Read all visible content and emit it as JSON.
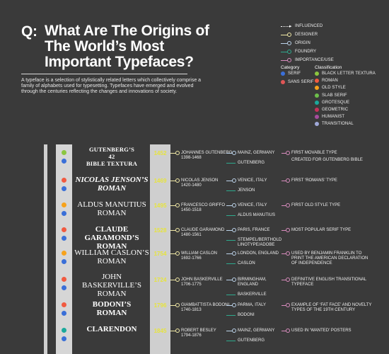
{
  "title": {
    "q": "Q:",
    "lines": [
      "What Are The Origins of",
      "The World’s Most",
      "Important Typefaces?"
    ]
  },
  "intro": "A typeface is a selection of stylistically related letters which collectively comprise a family of alphabets used for typesetting. Typefaces have emerged and evolved through the centuries reflecting the changes and innovations of society.",
  "legend": {
    "lines": [
      {
        "label": "INFLUENCED",
        "style": "dotted",
        "color": "#ffffff",
        "arrow": true
      },
      {
        "label": "DESIGNER",
        "style": "solid",
        "color": "#f1e9a6"
      },
      {
        "label": "ORIGIN",
        "style": "solid",
        "color": "#bcd3ea"
      },
      {
        "label": "FOUNDRY",
        "style": "solid",
        "color": "#2eaa8e"
      },
      {
        "label": "IMPORTANCE/USE",
        "style": "solid",
        "color": "#d98cbe"
      }
    ],
    "category_heading": "Category",
    "categories": [
      {
        "label": "SERIF",
        "color": "#3a6fd8"
      },
      {
        "label": "SANS SERIF",
        "color": "#e05656"
      }
    ],
    "classification_heading": "Classification",
    "classifications": [
      {
        "label": "BLACK LETTER TEXTURA",
        "color": "#8cc63f"
      },
      {
        "label": "ROMAN",
        "color": "#f15a40"
      },
      {
        "label": "OLD STYLE",
        "color": "#f7a21b"
      },
      {
        "label": "SLAB SERIF",
        "color": "#6dbf4b"
      },
      {
        "label": "GROTESQUE",
        "color": "#1ba99c"
      },
      {
        "label": "GEOMETRIC",
        "color": "#c7305b"
      },
      {
        "label": "HUMANIST",
        "color": "#a64d9e"
      },
      {
        "label": "TRANSITIONAL",
        "color": "#9fa8d8"
      }
    ]
  },
  "typefaces": [
    {
      "name_lines": [
        "GUTENBERG’S",
        "42",
        "BIBLE TEXTURA"
      ],
      "style": "gothic",
      "year": "1452",
      "designer": [
        "JOHANNES GUTENBERG",
        "1398-1468"
      ],
      "place": [
        "MAINZ, GERMANY"
      ],
      "foundry": [
        "GUTENBERG"
      ],
      "note": [
        "FIRST MOVABLE TYPE",
        "CREATED FOR GUTENBERG BIBLE"
      ],
      "classification_color": "#8cc63f",
      "category_color": "#3a6fd8"
    },
    {
      "name_lines": [
        "NICOLAS JENSON’S",
        "ROMAN"
      ],
      "style": "italic",
      "year": "1469",
      "designer": [
        "NICOLAS JENSON",
        "1420-1480"
      ],
      "place": [
        "VENICE, ITALY"
      ],
      "foundry": [
        "JENSON"
      ],
      "note": [
        "FIRST ‘ROMANS’ TYPE"
      ],
      "classification_color": "#f15a40",
      "category_color": "#3a6fd8"
    },
    {
      "name_lines": [
        "ALDUS MANUTIUS",
        "ROMAN"
      ],
      "style": "plain",
      "year": "1495",
      "designer": [
        "FRANCESCO GRIFFO",
        "1450-1518"
      ],
      "place": [
        "VENICE, ITALY"
      ],
      "foundry": [
        "ALDUS MANUTIUS"
      ],
      "note": [
        "FIRST OLD STYLE TYPE"
      ],
      "classification_color": "#f7a21b",
      "category_color": "#3a6fd8"
    },
    {
      "name_lines": [
        "CLAUDE GARAMOND’S",
        "ROMAN"
      ],
      "style": "bold",
      "year": "1528",
      "designer": [
        "CLAUDE GARAMOND",
        "1480-1561"
      ],
      "place": [
        "PARIS, FRANCE"
      ],
      "foundry": [
        "STEMPEL/BERTHOLD",
        "LINOTYPE/ADOBE"
      ],
      "note": [
        "MOST POPULAR SERIF TYPE"
      ],
      "classification_color": "#f15a40",
      "category_color": "#3a6fd8"
    },
    {
      "name_lines": [
        "WILLIAM CASLON’S",
        "ROMAN"
      ],
      "style": "plain",
      "year": "1754",
      "designer": [
        "WILLIAM CASLON",
        "1692-1766"
      ],
      "place": [
        "LONDON, ENGLAND"
      ],
      "foundry": [
        "CASLON"
      ],
      "note": [
        "USED BY BENJAMIN FRANKLIN TO",
        "PRINT THE AMERICAN DECLARATION",
        "OF INDEPENDENCE"
      ],
      "classification_color": "#f7a21b",
      "category_color": "#3a6fd8"
    },
    {
      "name_lines": [
        "JOHN",
        "BASKERVILLE’S",
        "ROMAN"
      ],
      "style": "plain",
      "year": "1724",
      "designer": [
        "JOHN BASKERVILLE",
        "1706-1775"
      ],
      "place": [
        "BIRMINGHAM,",
        "ENGLAND"
      ],
      "foundry": [
        "BASKERVILLE"
      ],
      "note": [
        "DEFINITIVE ENGLISH TRANSITIONAL",
        "TYPEFACE"
      ],
      "classification_color": "#f15a40",
      "category_color": "#3a6fd8"
    },
    {
      "name_lines": [
        "BODONI’S",
        "ROMAN"
      ],
      "style": "bold",
      "year": "1796",
      "designer": [
        "GIAMBATTISTA BODONI",
        "1740-1813"
      ],
      "place": [
        "PARMA, ITALY"
      ],
      "foundry": [
        "BODONI"
      ],
      "note": [
        "EXAMPLE OF ‘FAT FACE’ AND NOVELTY",
        "TYPES OF THE 19TH  CENTURY"
      ],
      "classification_color": "#f15a40",
      "category_color": "#3a6fd8"
    },
    {
      "name_lines": [
        "CLARENDON"
      ],
      "style": "bold",
      "year": "1845",
      "designer": [
        "ROBERT BESLEY",
        "1794-1876"
      ],
      "place": [
        "MAINZ, GERMANY"
      ],
      "foundry": [
        "GUTENBERG"
      ],
      "note": [
        "USED IN ‘WANTED’ POSTERS"
      ],
      "classification_color": "#1ba99c",
      "category_color": "#3a6fd8"
    }
  ]
}
